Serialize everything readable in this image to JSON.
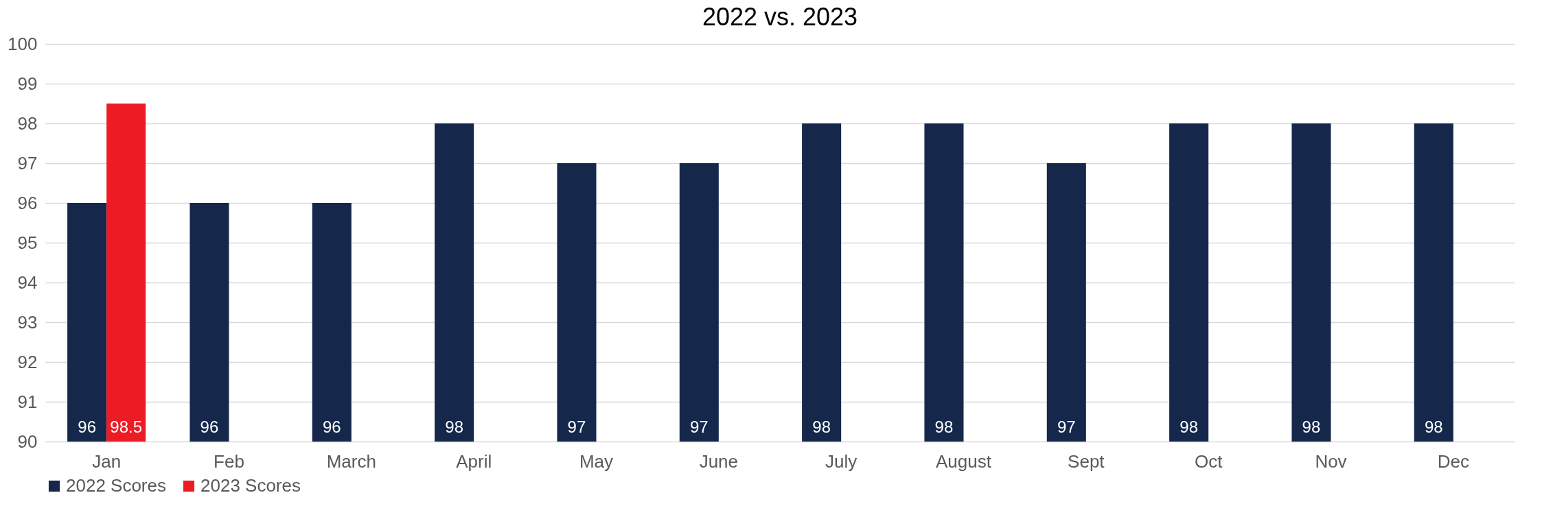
{
  "chart_data": {
    "type": "bar",
    "title": "2022 vs. 2023",
    "categories": [
      "Jan",
      "Feb",
      "March",
      "April",
      "May",
      "June",
      "July",
      "August",
      "Sept",
      "Oct",
      "Nov",
      "Dec"
    ],
    "series": [
      {
        "name": "2022 Scores",
        "color": "#15284b",
        "values": [
          96,
          96,
          96,
          98,
          97,
          97,
          98,
          98,
          97,
          98,
          98,
          98
        ]
      },
      {
        "name": "2023 Scores",
        "color": "#ed1c24",
        "values": [
          98.5,
          null,
          null,
          null,
          null,
          null,
          null,
          null,
          null,
          null,
          null,
          null
        ]
      }
    ],
    "ylim": [
      90,
      100
    ],
    "yticks": [
      90,
      91,
      92,
      93,
      94,
      95,
      96,
      97,
      98,
      99,
      100
    ],
    "grid": "y",
    "legend": "bottom",
    "data_labels": true
  }
}
